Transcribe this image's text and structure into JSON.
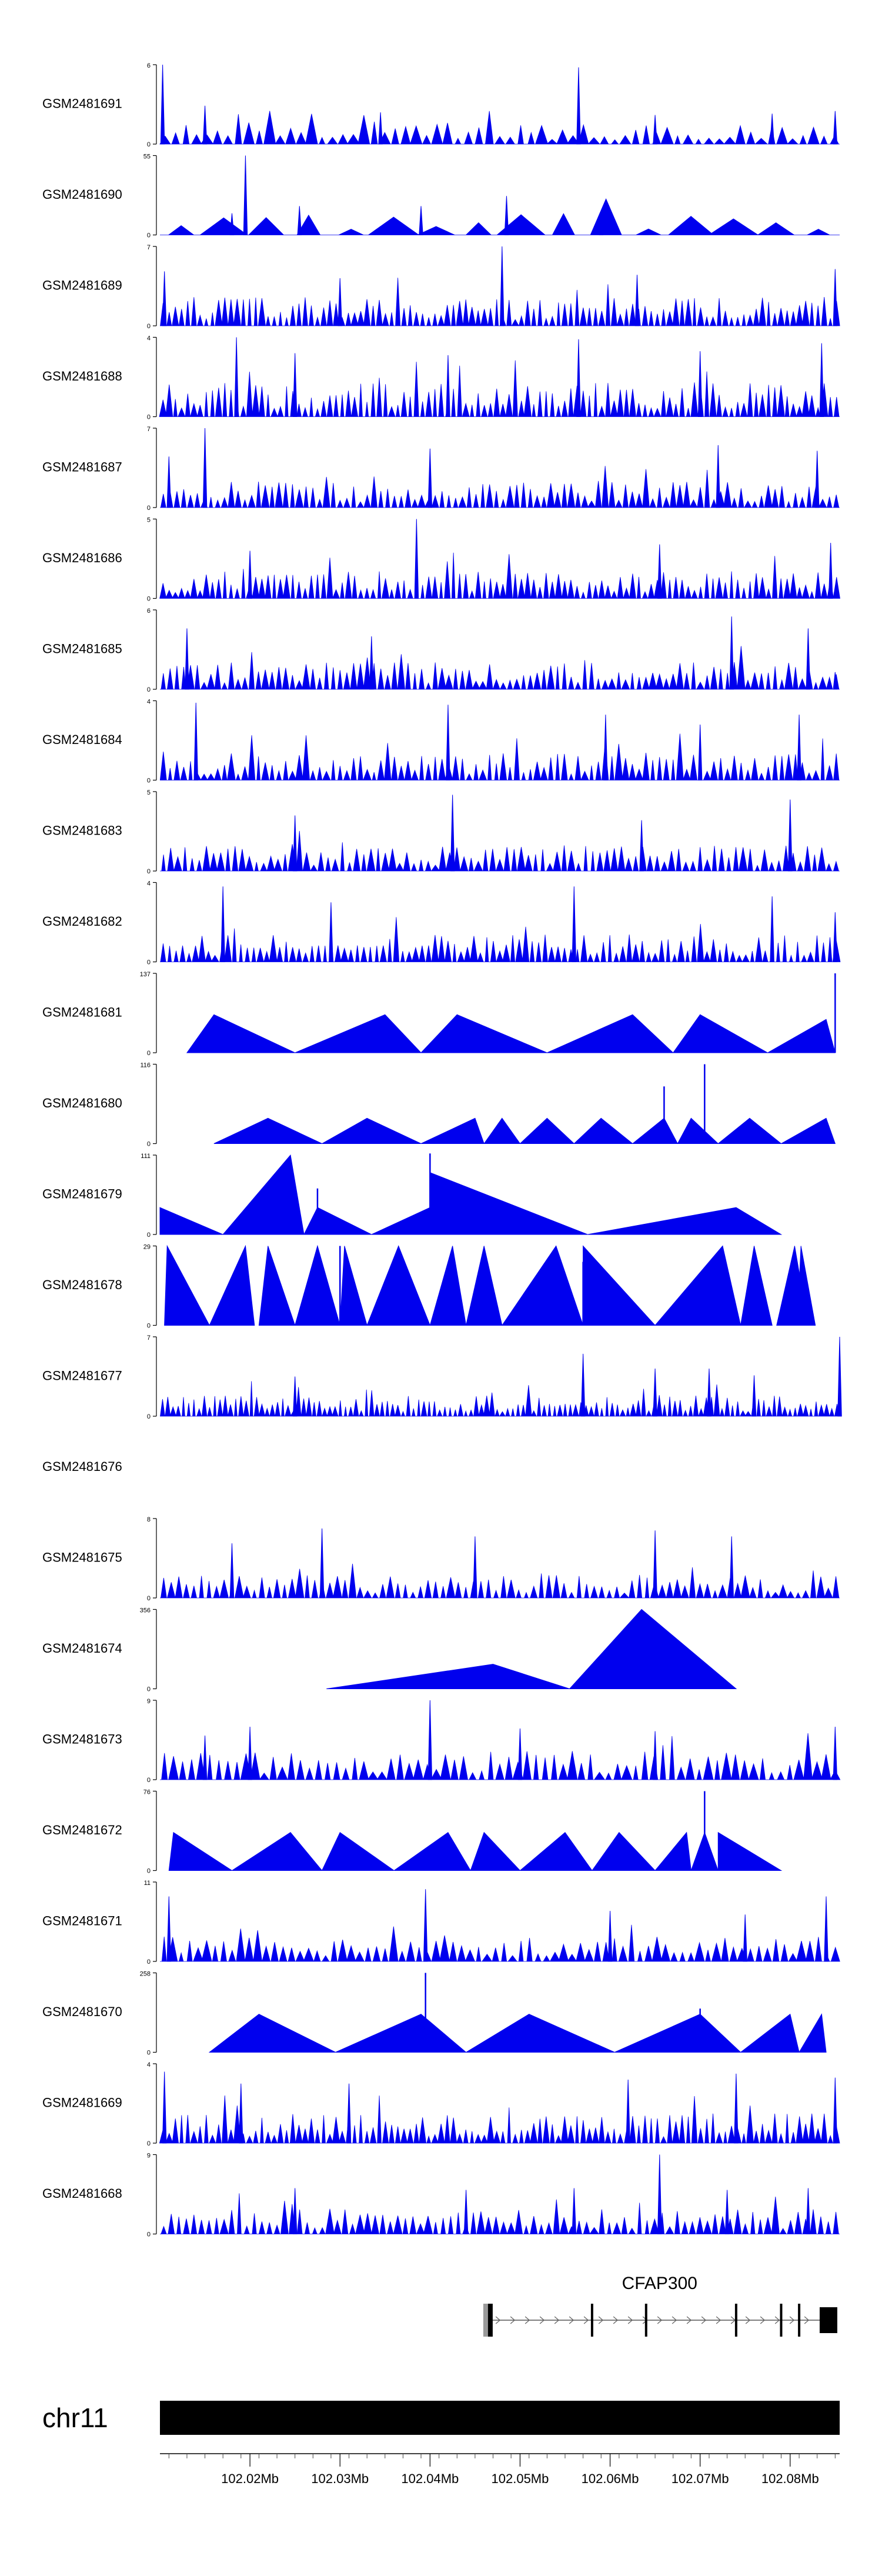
{
  "chart_data": {
    "type": "area",
    "title": "",
    "colors": {
      "signal": "#0000ee",
      "axis": "#000000",
      "gene": "#000000",
      "chrom": "#000000"
    },
    "x_range_mb": [
      102.01,
      102.0855
    ],
    "tracks": [
      {
        "name": "GSM2481691",
        "ymax": "6",
        "peaks": [
          [
            102.0103,
            6.0
          ],
          [
            102.0565,
            5.8
          ],
          [
            102.015,
            2.9
          ],
          [
            102.0345,
            2.4
          ],
          [
            102.065,
            2.2
          ],
          [
            102.078,
            2.3
          ],
          [
            102.085,
            2.5
          ]
        ],
        "density": 65,
        "base": 1.3,
        "style": "dense"
      },
      {
        "name": "GSM2481690",
        "ymax": "55",
        "peaks": [
          [
            102.0195,
            55.0
          ],
          [
            102.0485,
            27.0
          ],
          [
            102.0255,
            20.0
          ],
          [
            102.039,
            20.0
          ],
          [
            102.018,
            15.0
          ],
          [
            102.059,
            15.0
          ]
        ],
        "density": 16,
        "base": 13.0,
        "style": "tri"
      },
      {
        "name": "GSM2481689",
        "ymax": "7",
        "peaks": [
          [
            102.048,
            7.0
          ],
          [
            102.085,
            5.0
          ],
          [
            102.0105,
            4.8
          ],
          [
            102.03,
            4.2
          ],
          [
            102.063,
            4.5
          ]
        ],
        "density": 110,
        "base": 2.2,
        "style": "dense"
      },
      {
        "name": "GSM2481688",
        "ymax": "4",
        "peaks": [
          [
            102.0185,
            4.0
          ],
          [
            102.0565,
            3.9
          ],
          [
            102.0835,
            3.7
          ],
          [
            102.025,
            3.2
          ],
          [
            102.042,
            3.1
          ],
          [
            102.07,
            3.3
          ]
        ],
        "density": 110,
        "base": 1.5,
        "style": "dense"
      },
      {
        "name": "GSM2481687",
        "ymax": "7",
        "peaks": [
          [
            102.015,
            7.0
          ],
          [
            102.04,
            5.2
          ],
          [
            102.072,
            5.5
          ],
          [
            102.083,
            5.0
          ],
          [
            102.011,
            4.5
          ]
        ],
        "density": 100,
        "base": 2.0,
        "style": "dense"
      },
      {
        "name": "GSM2481686",
        "ymax": "5",
        "peaks": [
          [
            102.0385,
            5.0
          ],
          [
            102.0655,
            3.4
          ],
          [
            102.0845,
            3.5
          ],
          [
            102.02,
            3.0
          ]
        ],
        "density": 110,
        "base": 1.5,
        "style": "dense"
      },
      {
        "name": "GSM2481685",
        "ymax": "6",
        "peaks": [
          [
            102.0735,
            5.5
          ],
          [
            102.013,
            4.6
          ],
          [
            102.082,
            4.6
          ],
          [
            102.0335,
            4.0
          ],
          [
            102.085,
            1.3
          ]
        ],
        "density": 100,
        "base": 1.8,
        "style": "dense"
      },
      {
        "name": "GSM2481684",
        "ymax": "4",
        "peaks": [
          [
            102.014,
            3.9
          ],
          [
            102.042,
            3.8
          ],
          [
            102.0595,
            3.3
          ],
          [
            102.081,
            3.3
          ],
          [
            102.07,
            2.8
          ]
        ],
        "density": 100,
        "base": 1.2,
        "style": "dense"
      },
      {
        "name": "GSM2481683",
        "ymax": "5",
        "peaks": [
          [
            102.0425,
            4.8
          ],
          [
            102.08,
            4.5
          ],
          [
            102.025,
            3.5
          ],
          [
            102.0635,
            3.2
          ]
        ],
        "density": 95,
        "base": 1.4,
        "style": "dense"
      },
      {
        "name": "GSM2481682",
        "ymax": "4",
        "peaks": [
          [
            102.017,
            3.8
          ],
          [
            102.056,
            3.8
          ],
          [
            102.078,
            3.3
          ],
          [
            102.029,
            3.0
          ],
          [
            102.085,
            2.5
          ]
        ],
        "density": 105,
        "base": 1.2,
        "style": "dense"
      },
      {
        "name": "GSM2481681",
        "ymax": "137",
        "tri": [
          [
            102.013,
            102.016,
            102.025,
            0.48
          ],
          [
            102.025,
            102.035,
            102.039,
            0.48
          ],
          [
            102.039,
            102.043,
            102.053,
            0.48
          ],
          [
            102.053,
            102.0625,
            102.067,
            0.48
          ],
          [
            102.067,
            102.07,
            102.0775,
            0.48
          ],
          [
            102.0775,
            102.084,
            102.085,
            0.42
          ]
        ],
        "spikes": [
          [
            102.085,
            137.0
          ]
        ]
      },
      {
        "name": "GSM2481680",
        "ymax": "116",
        "tri": [
          [
            102.016,
            102.022,
            102.028,
            0.32
          ],
          [
            102.028,
            102.033,
            102.039,
            0.32
          ],
          [
            102.039,
            102.045,
            102.046,
            0.32
          ],
          [
            102.046,
            102.048,
            102.05,
            0.32
          ],
          [
            102.05,
            102.053,
            102.056,
            0.32
          ],
          [
            102.056,
            102.059,
            102.0625,
            0.32
          ],
          [
            102.0625,
            102.066,
            102.0675,
            0.32
          ],
          [
            102.0675,
            102.069,
            102.072,
            0.32
          ],
          [
            102.072,
            102.0755,
            102.079,
            0.32
          ],
          [
            102.079,
            102.084,
            102.085,
            0.32
          ]
        ],
        "spikes": [
          [
            102.022,
            0.32
          ],
          [
            102.066,
            0.72
          ],
          [
            102.0705,
            1.0
          ]
        ]
      },
      {
        "name": "GSM2481679",
        "ymax": "111",
        "tri": [
          [
            102.01,
            102.01,
            102.017,
            0.34
          ],
          [
            102.017,
            102.0245,
            102.026,
            1.0
          ],
          [
            102.026,
            102.0275,
            102.0335,
            0.34
          ],
          [
            102.0335,
            102.04,
            102.04,
            0.34
          ],
          [
            102.04,
            102.04,
            102.0575,
            0.78
          ],
          [
            102.0575,
            102.074,
            102.079,
            0.34
          ]
        ],
        "spikes": [
          [
            102.0275,
            0.58
          ],
          [
            102.04,
            1.02
          ]
        ]
      },
      {
        "name": "GSM2481678",
        "ymax": "29",
        "tri": [
          [
            102.0105,
            102.0108,
            102.0155,
            1.0
          ],
          [
            102.0155,
            102.0195,
            102.0205,
            1.0
          ],
          [
            102.021,
            102.022,
            102.025,
            1.0
          ],
          [
            102.025,
            102.0275,
            102.03,
            1.0
          ],
          [
            102.03,
            102.0305,
            102.033,
            1.0
          ],
          [
            102.033,
            102.0365,
            102.04,
            1.0
          ],
          [
            102.04,
            102.0425,
            102.044,
            1.0
          ],
          [
            102.044,
            102.046,
            102.048,
            1.0
          ],
          [
            102.048,
            102.054,
            102.057,
            1.0
          ],
          [
            102.057,
            102.057,
            102.065,
            1.0
          ],
          [
            102.065,
            102.0725,
            102.0745,
            1.0
          ],
          [
            102.0745,
            102.076,
            102.078,
            1.0
          ],
          [
            102.0785,
            102.0805,
            102.082,
            1.0
          ],
          [
            102.0808,
            102.0812,
            102.0828,
            1.0
          ]
        ],
        "spikes": [
          [
            102.03,
            1.0
          ],
          [
            102.057,
            0.8
          ]
        ]
      },
      {
        "name": "GSM2481677",
        "ymax": "7",
        "peaks": [
          [
            102.0855,
            7.0
          ],
          [
            102.057,
            5.5
          ],
          [
            102.065,
            4.2
          ],
          [
            102.071,
            4.2
          ],
          [
            102.025,
            3.5
          ],
          [
            102.076,
            3.6
          ]
        ],
        "density": 130,
        "base": 1.6,
        "style": "dense"
      },
      {
        "name": "GSM2481676",
        "ymax": "",
        "empty": true
      },
      {
        "name": "GSM2481675",
        "ymax": "8",
        "peaks": [
          [
            102.028,
            7.0
          ],
          [
            102.065,
            6.8
          ],
          [
            102.045,
            6.2
          ],
          [
            102.0735,
            6.2
          ],
          [
            102.018,
            5.5
          ]
        ],
        "density": 90,
        "base": 2.0,
        "style": "dense"
      },
      {
        "name": "GSM2481674",
        "ymax": "356",
        "tri": [
          [
            102.0285,
            102.047,
            102.0555,
            0.31
          ],
          [
            102.0555,
            102.0635,
            102.074,
            1.0
          ]
        ],
        "spikes": []
      },
      {
        "name": "GSM2481673",
        "ymax": "9",
        "peaks": [
          [
            102.04,
            9.0
          ],
          [
            102.02,
            6.0
          ],
          [
            102.05,
            5.8
          ],
          [
            102.065,
            5.5
          ],
          [
            102.085,
            6.0
          ],
          [
            102.015,
            5.0
          ]
        ],
        "density": 75,
        "base": 2.8,
        "style": "dense"
      },
      {
        "name": "GSM2481672",
        "ymax": "76",
        "tri": [
          [
            102.011,
            102.0115,
            102.018,
            0.48
          ],
          [
            102.018,
            102.0245,
            102.028,
            0.48
          ],
          [
            102.028,
            102.03,
            102.036,
            0.48
          ],
          [
            102.036,
            102.042,
            102.0445,
            0.48
          ],
          [
            102.0445,
            102.046,
            102.05,
            0.48
          ],
          [
            102.05,
            102.055,
            102.058,
            0.48
          ],
          [
            102.058,
            102.061,
            102.065,
            0.48
          ],
          [
            102.065,
            102.0685,
            102.069,
            0.48
          ],
          [
            102.069,
            102.0705,
            102.072,
            0.48
          ],
          [
            102.072,
            102.072,
            102.079,
            0.48
          ]
        ],
        "spikes": [
          [
            102.0705,
            1.0
          ]
        ]
      },
      {
        "name": "GSM2481671",
        "ymax": "11",
        "peaks": [
          [
            102.0395,
            10.0
          ],
          [
            102.011,
            9.0
          ],
          [
            102.084,
            9.0
          ],
          [
            102.06,
            7.0
          ],
          [
            102.075,
            6.5
          ]
        ],
        "density": 80,
        "base": 3.0,
        "style": "dense"
      },
      {
        "name": "GSM2481670",
        "ymax": "258",
        "tri": [
          [
            102.0155,
            102.021,
            102.0295,
            0.48
          ],
          [
            102.0295,
            102.039,
            102.044,
            0.48
          ],
          [
            102.044,
            102.051,
            102.0605,
            0.48
          ],
          [
            102.0605,
            102.07,
            102.0745,
            0.48
          ],
          [
            102.0745,
            102.08,
            102.081,
            0.48
          ],
          [
            102.081,
            102.0835,
            102.084,
            0.48
          ]
        ],
        "spikes": [
          [
            102.0395,
            1.0
          ],
          [
            102.07,
            0.55
          ]
        ]
      },
      {
        "name": "GSM2481669",
        "ymax": "4",
        "peaks": [
          [
            102.085,
            3.3
          ],
          [
            102.0105,
            3.6
          ],
          [
            102.019,
            3.0
          ],
          [
            102.031,
            3.0
          ],
          [
            102.062,
            3.2
          ],
          [
            102.074,
            3.5
          ]
        ],
        "density": 110,
        "base": 1.3,
        "style": "dense"
      },
      {
        "name": "GSM2481668",
        "ymax": "9",
        "peaks": [
          [
            102.0655,
            9.0
          ],
          [
            102.025,
            5.2
          ],
          [
            102.044,
            5.0
          ],
          [
            102.056,
            5.2
          ],
          [
            102.073,
            5.0
          ],
          [
            102.082,
            5.2
          ]
        ],
        "density": 90,
        "base": 2.5,
        "style": "dense"
      }
    ],
    "gene": {
      "name": "CFAP300",
      "start_mb": 102.046,
      "end_mb": 102.085,
      "exons_mb": [
        102.0467,
        102.058,
        102.064,
        102.074,
        102.079,
        102.081,
        102.0838
      ]
    },
    "chromosome": "chr11",
    "x_ticks": [
      "102.02Mb",
      "102.03Mb",
      "102.04Mb",
      "102.05Mb",
      "102.06Mb",
      "102.07Mb",
      "102.08Mb"
    ],
    "x_tick_values": [
      102.02,
      102.03,
      102.04,
      102.05,
      102.06,
      102.07,
      102.08
    ]
  }
}
